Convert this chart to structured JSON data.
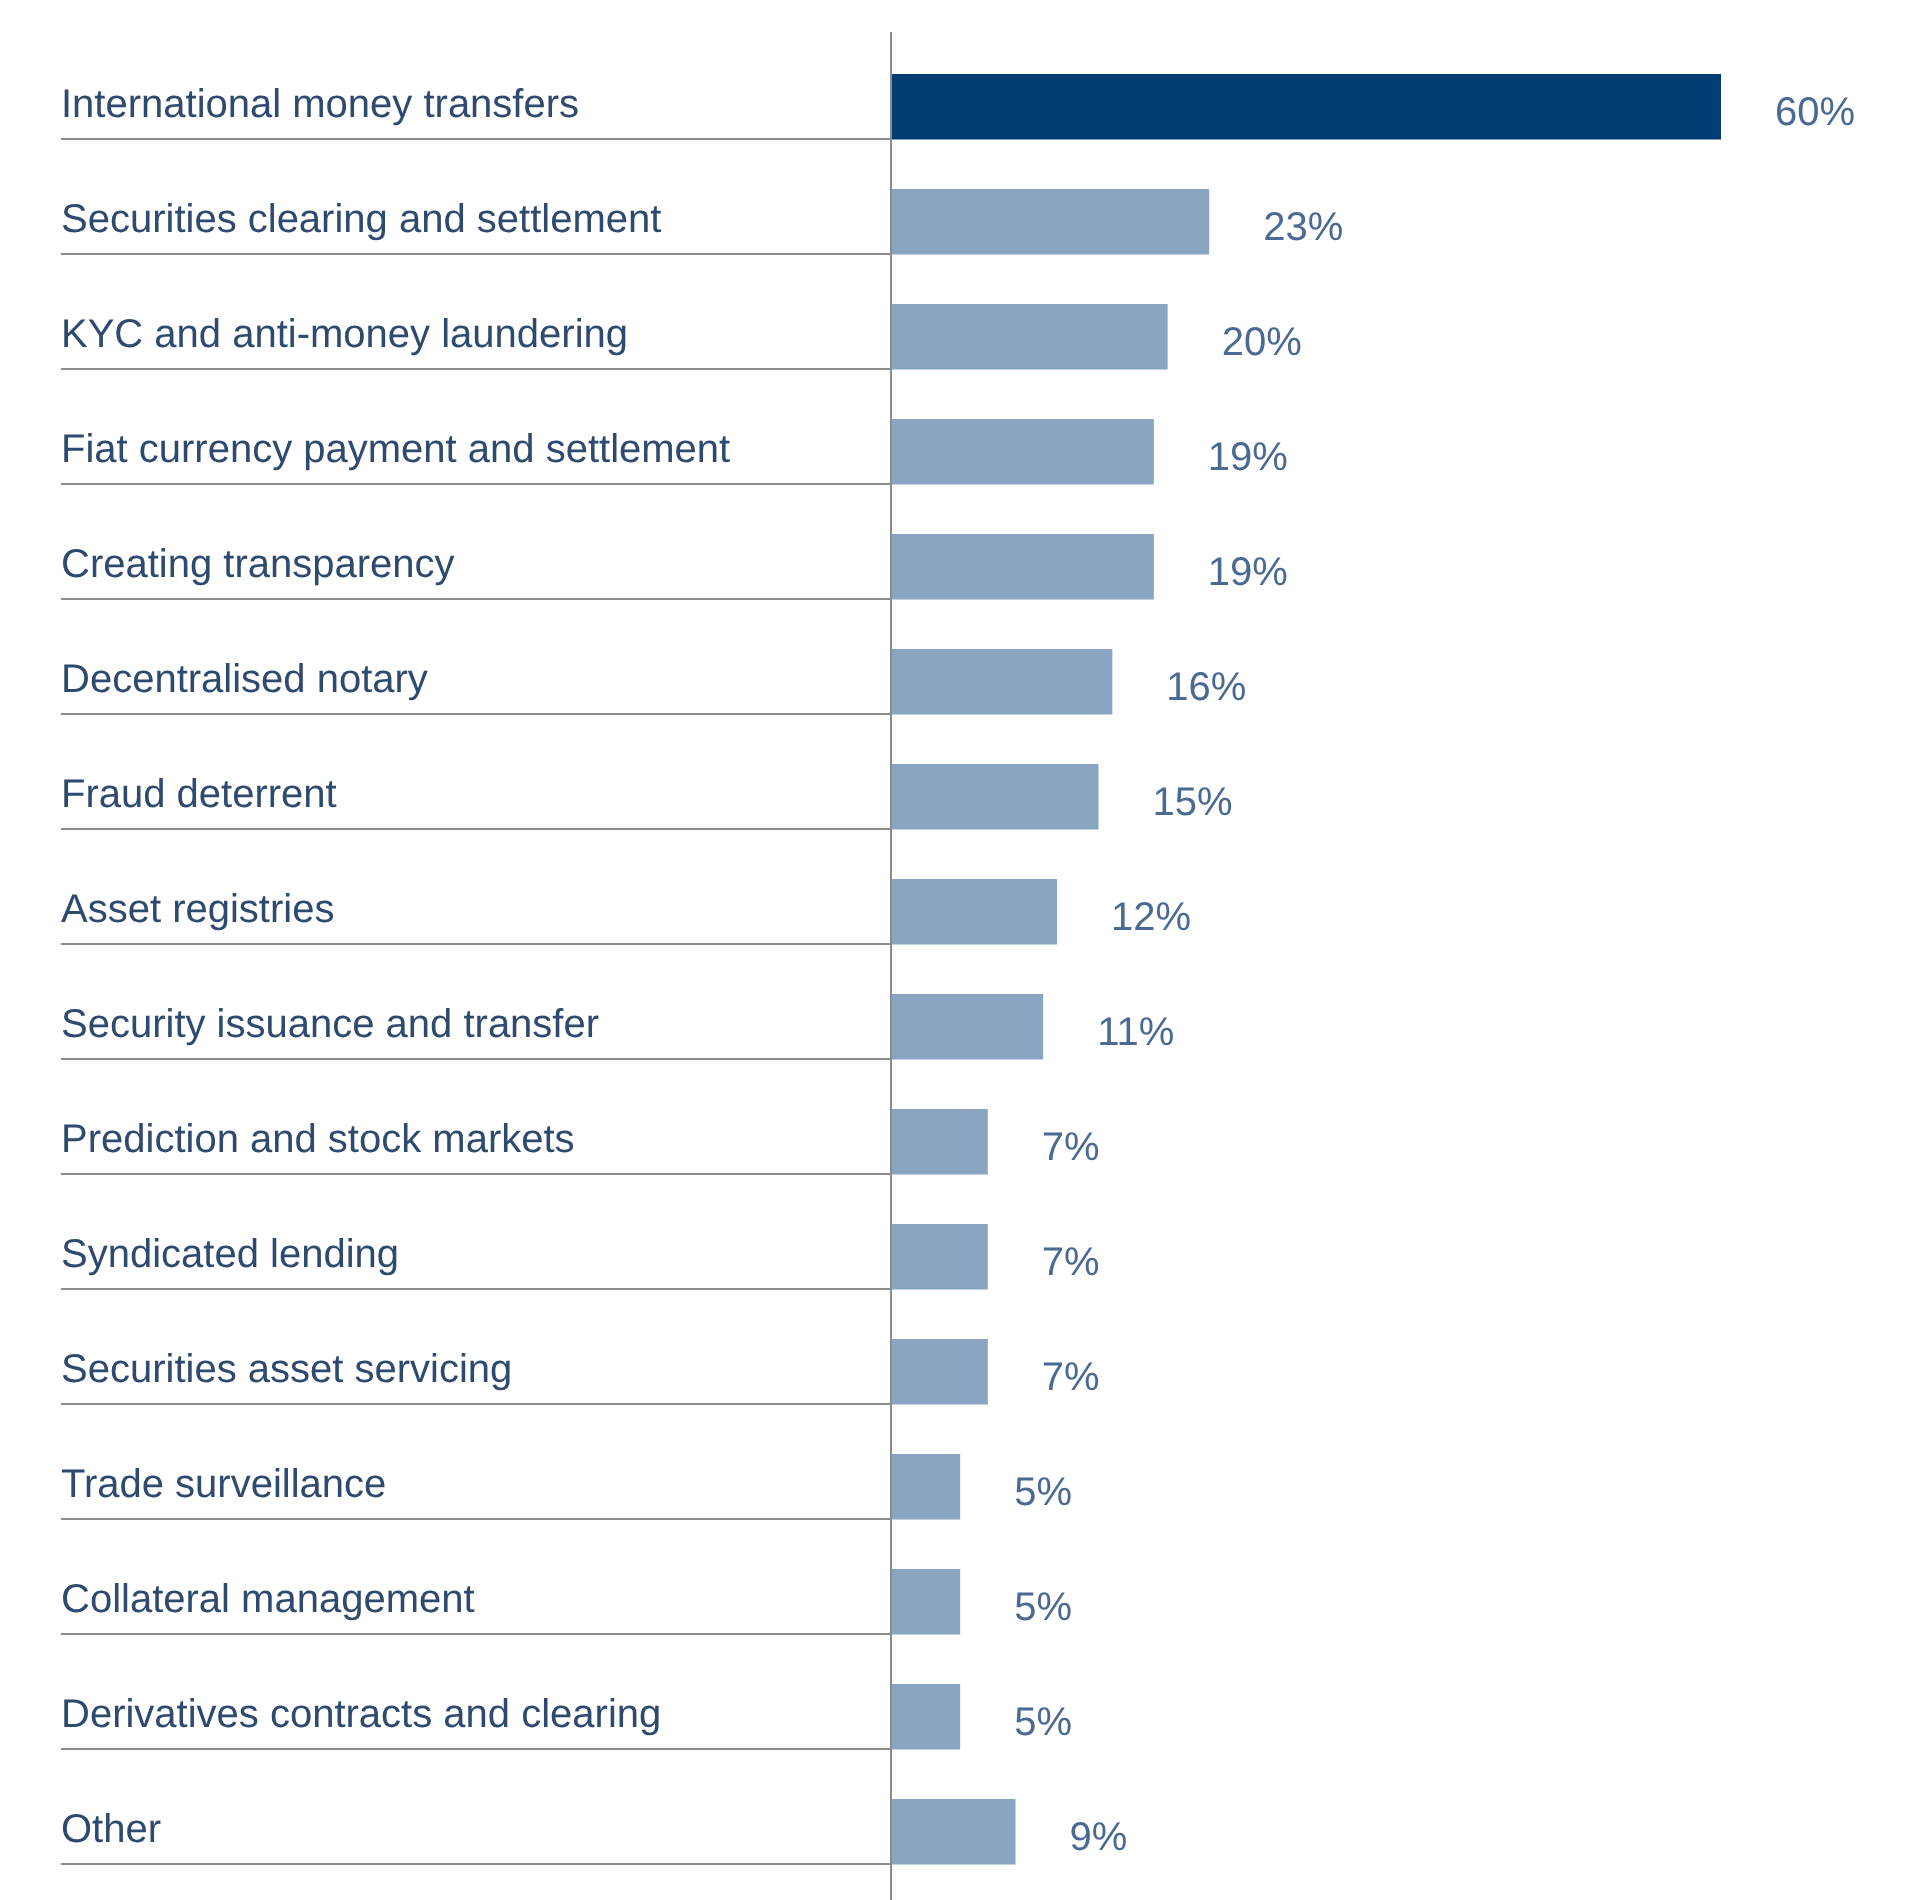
{
  "chart_data": {
    "type": "bar",
    "orientation": "horizontal",
    "categories": [
      "International money transfers",
      "Securities clearing and settlement",
      "KYC and anti-money laundering",
      "Fiat currency payment and settlement",
      "Creating transparency",
      "Decentralised notary",
      "Fraud deterrent",
      "Asset registries",
      "Security issuance and transfer",
      "Prediction and stock markets",
      "Syndicated lending",
      "Securities asset servicing",
      "Trade surveillance",
      "Collateral  management",
      "Derivatives contracts and clearing",
      "Other"
    ],
    "values": [
      60,
      23,
      20,
      19,
      19,
      16,
      15,
      12,
      11,
      7,
      7,
      7,
      5,
      5,
      5,
      9
    ],
    "value_labels": [
      "60%",
      "23%",
      "20%",
      "19%",
      "19%",
      "16%",
      "15%",
      "12%",
      "11%",
      "7%",
      "7%",
      "7%",
      "5%",
      "5%",
      "5%",
      "9%"
    ],
    "colors": [
      "#003d73",
      "#8aa5c2",
      "#8aa5c2",
      "#8aa5c2",
      "#8aa5c2",
      "#8aa5c2",
      "#8aa5c2",
      "#8aa5c2",
      "#8aa5c2",
      "#8aa5c2",
      "#8aa5c2",
      "#8aa5c2",
      "#8aa5c2",
      "#8aa5c2",
      "#8aa5c2",
      "#8aa5c2"
    ]
  }
}
